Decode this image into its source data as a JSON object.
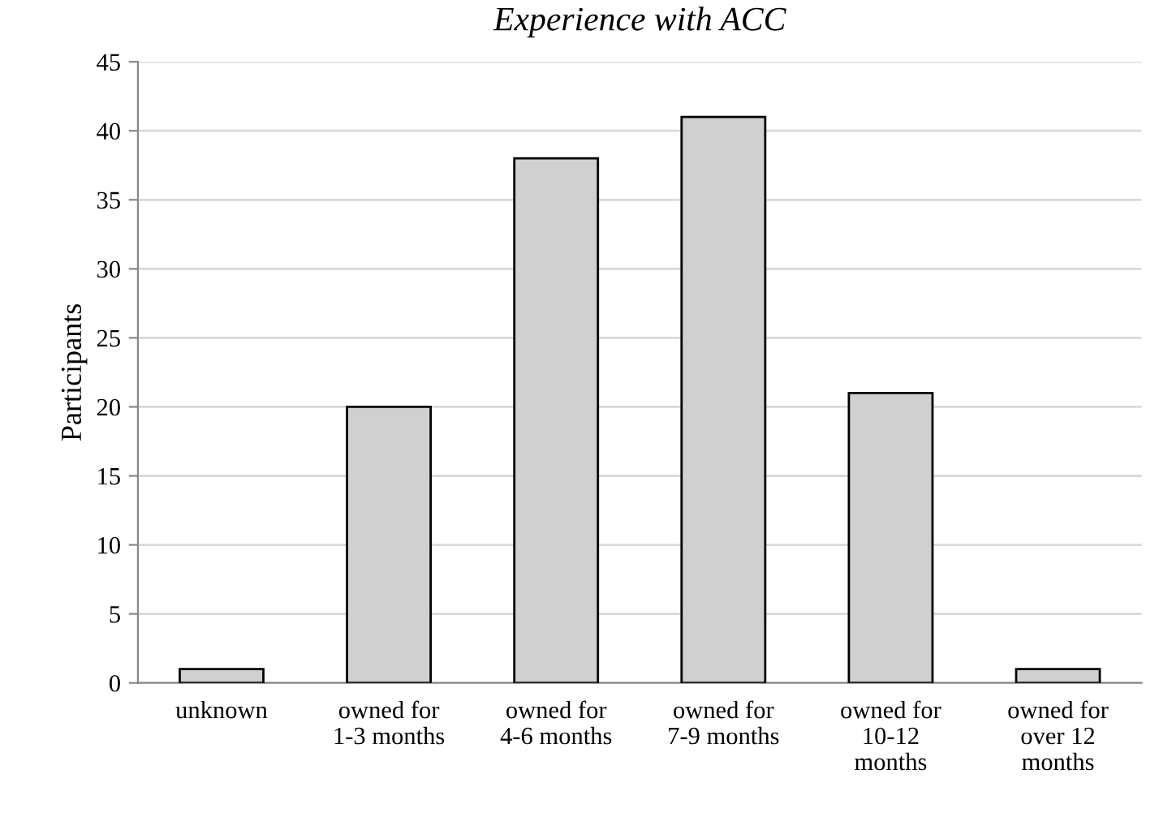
{
  "chart_data": {
    "type": "bar",
    "title": "Experience with ACC",
    "ylabel": "Participants",
    "categories": [
      "unknown",
      "owned for\n1-3 months",
      "owned for\n4-6 months",
      "owned for\n7-9 months",
      "owned for\n10-12\nmonths",
      "owned for\nover 12\nmonths"
    ],
    "values": [
      1,
      20,
      38,
      41,
      21,
      1
    ],
    "color": "#d0d0d0",
    "ylim": [
      0,
      45
    ],
    "yticks": [
      0,
      5,
      10,
      15,
      20,
      25,
      30,
      35,
      40,
      45
    ],
    "grid": "y"
  }
}
